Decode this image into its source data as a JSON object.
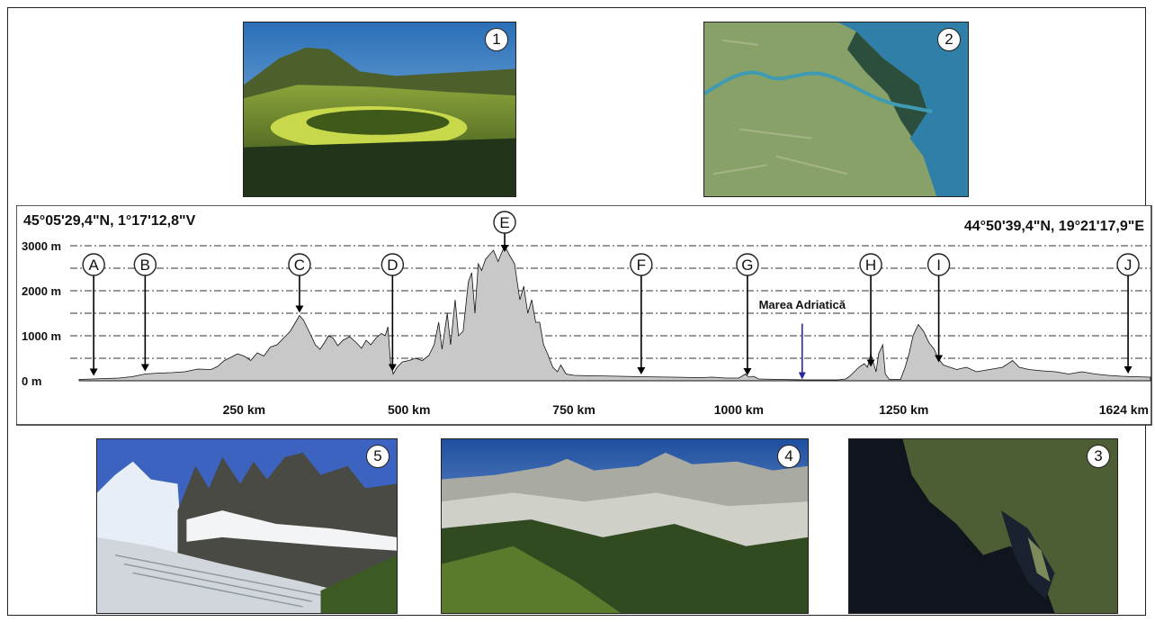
{
  "photos": [
    {
      "number": "1"
    },
    {
      "number": "2"
    },
    {
      "number": "3"
    },
    {
      "number": "4"
    },
    {
      "number": "5"
    }
  ],
  "chart_data": {
    "type": "area",
    "coord_left": "45°05'29,4\"N, 1°17'12,8\"V",
    "coord_right": "44°50'39,4\"N, 19°21'17,9\"E",
    "xlim": [
      0,
      1624
    ],
    "ylim": [
      0,
      3000
    ],
    "y_ticks": [
      {
        "value": 0,
        "label": "0 m"
      },
      {
        "value": 1000,
        "label": "1000 m"
      },
      {
        "value": 2000,
        "label": "2000 m"
      },
      {
        "value": 3000,
        "label": "3000 m"
      }
    ],
    "y_gridlines": [
      500,
      1000,
      1500,
      2000,
      2500,
      3000
    ],
    "x_ticks": [
      {
        "value": 250,
        "label": "250 km"
      },
      {
        "value": 500,
        "label": "500 km"
      },
      {
        "value": 750,
        "label": "750 km"
      },
      {
        "value": 1000,
        "label": "1000 km"
      },
      {
        "value": 1250,
        "label": "1250 km"
      },
      {
        "value": 1624,
        "label": "1624 km"
      }
    ],
    "sea_label": "Marea Adriatică",
    "sea_marker": {
      "km": 1096,
      "top": 1350,
      "bottom": 30
    },
    "markers": [
      {
        "label": "A",
        "km": 22,
        "elev": 50
      },
      {
        "label": "B",
        "km": 100,
        "elev": 150
      },
      {
        "label": "C",
        "km": 334,
        "elev": 1450
      },
      {
        "label": "D",
        "km": 475,
        "elev": 150
      },
      {
        "label": "E",
        "km": 645,
        "elev": 2800
      },
      {
        "label": "F",
        "km": 852,
        "elev": 80
      },
      {
        "label": "G",
        "km": 1013,
        "elev": 60
      },
      {
        "label": "H",
        "km": 1200,
        "elev": 250
      },
      {
        "label": "I",
        "km": 1303,
        "elev": 350
      },
      {
        "label": "J",
        "km": 1590,
        "elev": 100
      }
    ],
    "profile": [
      [
        0,
        30
      ],
      [
        20,
        40
      ],
      [
        40,
        50
      ],
      [
        60,
        60
      ],
      [
        80,
        90
      ],
      [
        100,
        150
      ],
      [
        120,
        170
      ],
      [
        140,
        180
      ],
      [
        160,
        200
      ],
      [
        180,
        260
      ],
      [
        200,
        250
      ],
      [
        210,
        320
      ],
      [
        220,
        450
      ],
      [
        230,
        520
      ],
      [
        240,
        600
      ],
      [
        250,
        550
      ],
      [
        260,
        450
      ],
      [
        270,
        620
      ],
      [
        280,
        550
      ],
      [
        290,
        750
      ],
      [
        300,
        800
      ],
      [
        310,
        950
      ],
      [
        320,
        1100
      ],
      [
        330,
        1350
      ],
      [
        334,
        1450
      ],
      [
        340,
        1350
      ],
      [
        350,
        1050
      ],
      [
        358,
        800
      ],
      [
        365,
        700
      ],
      [
        372,
        850
      ],
      [
        378,
        1000
      ],
      [
        385,
        950
      ],
      [
        392,
        780
      ],
      [
        400,
        900
      ],
      [
        410,
        980
      ],
      [
        420,
        850
      ],
      [
        428,
        720
      ],
      [
        435,
        900
      ],
      [
        442,
        800
      ],
      [
        450,
        950
      ],
      [
        458,
        1050
      ],
      [
        464,
        1000
      ],
      [
        468,
        1200
      ],
      [
        472,
        400
      ],
      [
        476,
        150
      ],
      [
        482,
        300
      ],
      [
        490,
        420
      ],
      [
        500,
        450
      ],
      [
        510,
        500
      ],
      [
        520,
        450
      ],
      [
        530,
        560
      ],
      [
        538,
        800
      ],
      [
        545,
        1300
      ],
      [
        550,
        700
      ],
      [
        558,
        1500
      ],
      [
        563,
        800
      ],
      [
        570,
        1800
      ],
      [
        575,
        1000
      ],
      [
        582,
        1100
      ],
      [
        590,
        2200
      ],
      [
        595,
        2400
      ],
      [
        600,
        1500
      ],
      [
        605,
        2600
      ],
      [
        610,
        2450
      ],
      [
        616,
        2700
      ],
      [
        622,
        2800
      ],
      [
        628,
        2900
      ],
      [
        635,
        2650
      ],
      [
        645,
        3000
      ],
      [
        652,
        2800
      ],
      [
        660,
        2600
      ],
      [
        668,
        1800
      ],
      [
        674,
        2100
      ],
      [
        680,
        1500
      ],
      [
        686,
        1800
      ],
      [
        692,
        1300
      ],
      [
        698,
        1300
      ],
      [
        704,
        800
      ],
      [
        710,
        600
      ],
      [
        718,
        300
      ],
      [
        725,
        200
      ],
      [
        730,
        350
      ],
      [
        738,
        150
      ],
      [
        750,
        120
      ],
      [
        780,
        110
      ],
      [
        820,
        100
      ],
      [
        850,
        90
      ],
      [
        900,
        80
      ],
      [
        940,
        70
      ],
      [
        960,
        80
      ],
      [
        980,
        60
      ],
      [
        1000,
        60
      ],
      [
        1010,
        150
      ],
      [
        1015,
        80
      ],
      [
        1022,
        100
      ],
      [
        1030,
        40
      ],
      [
        1060,
        30
      ],
      [
        1100,
        20
      ],
      [
        1150,
        20
      ],
      [
        1162,
        40
      ],
      [
        1168,
        100
      ],
      [
        1175,
        200
      ],
      [
        1182,
        300
      ],
      [
        1190,
        380
      ],
      [
        1195,
        300
      ],
      [
        1200,
        600
      ],
      [
        1205,
        350
      ],
      [
        1208,
        200
      ],
      [
        1212,
        600
      ],
      [
        1218,
        800
      ],
      [
        1222,
        150
      ],
      [
        1228,
        30
      ],
      [
        1245,
        30
      ],
      [
        1252,
        300
      ],
      [
        1258,
        600
      ],
      [
        1264,
        1000
      ],
      [
        1272,
        1250
      ],
      [
        1280,
        1100
      ],
      [
        1288,
        850
      ],
      [
        1296,
        700
      ],
      [
        1302,
        500
      ],
      [
        1310,
        350
      ],
      [
        1320,
        300
      ],
      [
        1330,
        250
      ],
      [
        1345,
        300
      ],
      [
        1360,
        200
      ],
      [
        1380,
        250
      ],
      [
        1400,
        300
      ],
      [
        1415,
        450
      ],
      [
        1425,
        300
      ],
      [
        1440,
        250
      ],
      [
        1460,
        220
      ],
      [
        1480,
        200
      ],
      [
        1500,
        150
      ],
      [
        1520,
        200
      ],
      [
        1540,
        150
      ],
      [
        1560,
        120
      ],
      [
        1580,
        100
      ],
      [
        1600,
        90
      ],
      [
        1624,
        80
      ]
    ]
  }
}
